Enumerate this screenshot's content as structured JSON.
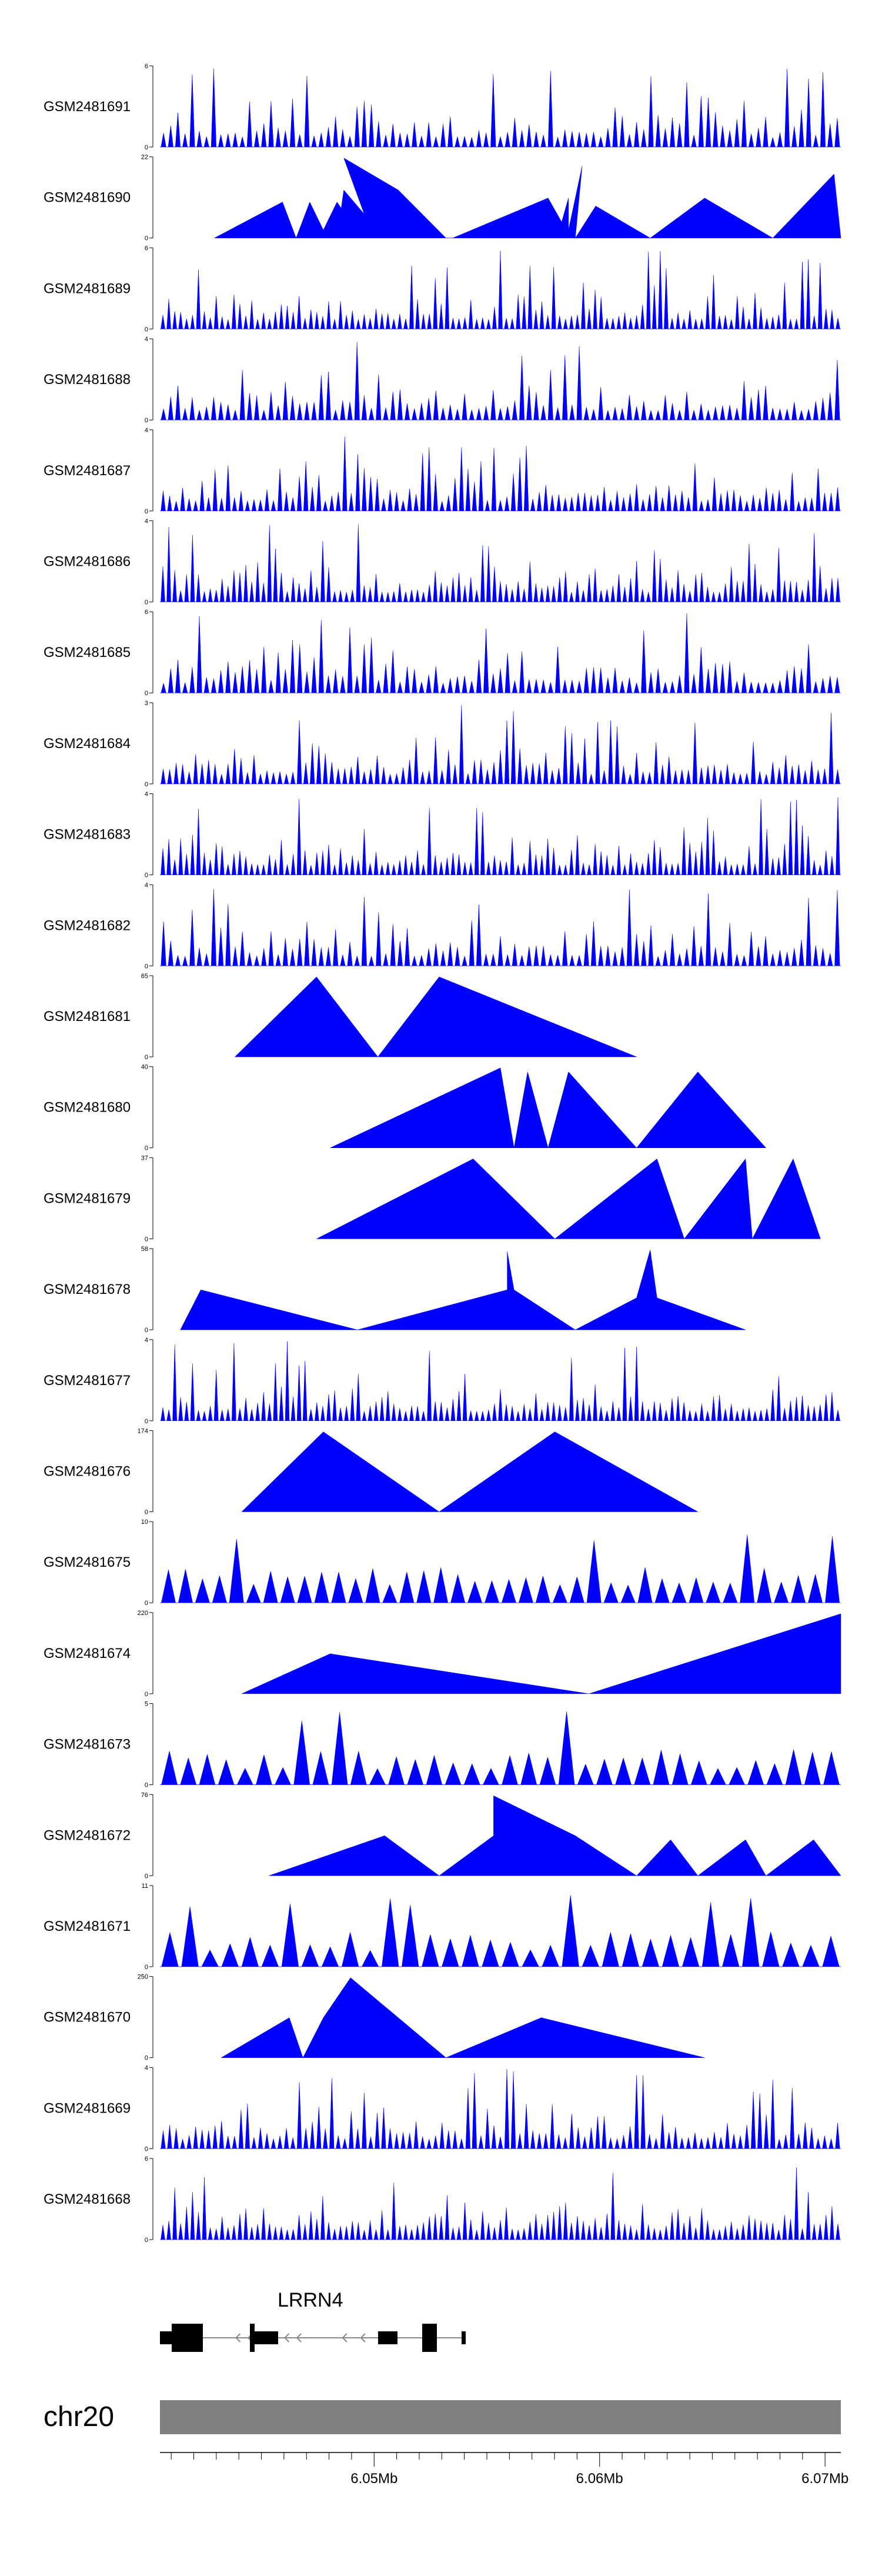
{
  "chart_data": {
    "type": "area",
    "title": "",
    "fill_color": "#0000ff",
    "tracks": [
      {
        "name": "GSM2481691",
        "ymax": "6",
        "ymin": "0"
      },
      {
        "name": "GSM2481690",
        "ymax": "22",
        "ymin": "0"
      },
      {
        "name": "GSM2481689",
        "ymax": "6",
        "ymin": "0"
      },
      {
        "name": "GSM2481688",
        "ymax": "4",
        "ymin": "0"
      },
      {
        "name": "GSM2481687",
        "ymax": "4",
        "ymin": "0"
      },
      {
        "name": "GSM2481686",
        "ymax": "4",
        "ymin": "0"
      },
      {
        "name": "GSM2481685",
        "ymax": "6",
        "ymin": "0"
      },
      {
        "name": "GSM2481684",
        "ymax": "3",
        "ymin": "0"
      },
      {
        "name": "GSM2481683",
        "ymax": "4",
        "ymin": "0"
      },
      {
        "name": "GSM2481682",
        "ymax": "4",
        "ymin": "0"
      },
      {
        "name": "GSM2481681",
        "ymax": "65",
        "ymin": "0"
      },
      {
        "name": "GSM2481680",
        "ymax": "40",
        "ymin": "0"
      },
      {
        "name": "GSM2481679",
        "ymax": "37",
        "ymin": "0"
      },
      {
        "name": "GSM2481678",
        "ymax": "58",
        "ymin": "0"
      },
      {
        "name": "GSM2481677",
        "ymax": "4",
        "ymin": "0"
      },
      {
        "name": "GSM2481676",
        "ymax": "174",
        "ymin": "0"
      },
      {
        "name": "GSM2481675",
        "ymax": "10",
        "ymin": "0"
      },
      {
        "name": "GSM2481674",
        "ymax": "220",
        "ymin": "0"
      },
      {
        "name": "GSM2481673",
        "ymax": "5",
        "ymin": "0"
      },
      {
        "name": "GSM2481672",
        "ymax": "76",
        "ymin": "0"
      },
      {
        "name": "GSM2481671",
        "ymax": "11",
        "ymin": "0"
      },
      {
        "name": "GSM2481670",
        "ymax": "250",
        "ymin": "0"
      },
      {
        "name": "GSM2481669",
        "ymax": "4",
        "ymin": "0"
      },
      {
        "name": "GSM2481668",
        "ymax": "6",
        "ymin": "0"
      }
    ],
    "gene": {
      "name": "LRRN4"
    },
    "chromosome": {
      "name": "chr20"
    },
    "genome_axis": {
      "range_mb": [
        6.0405,
        6.0707
      ],
      "ticks": [
        "6.05Mb",
        "6.06Mb",
        "6.07Mb"
      ]
    }
  }
}
